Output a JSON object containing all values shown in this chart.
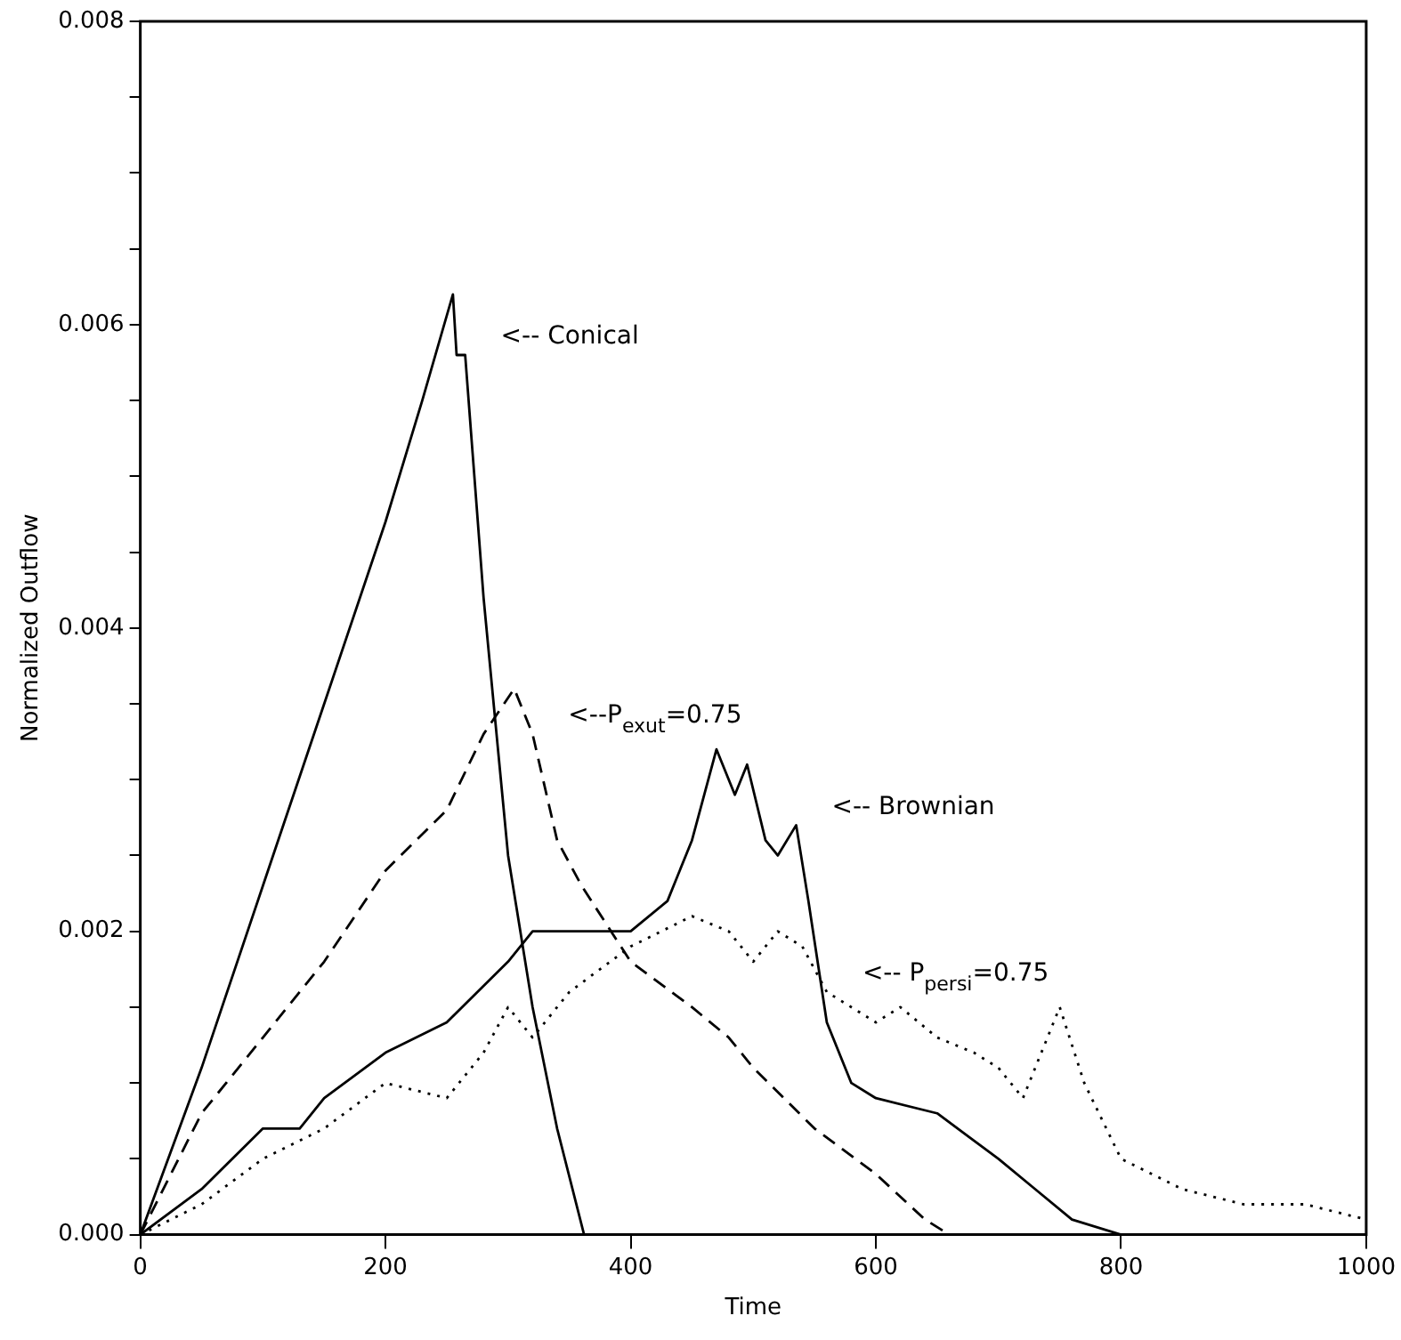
{
  "chart_data": {
    "type": "line",
    "xlabel": "Time",
    "ylabel": "Normalized Outflow",
    "xlim": [
      0,
      1000
    ],
    "xticks": [
      0,
      200,
      400,
      600,
      800,
      1000
    ],
    "ylim": [
      0,
      0.008
    ],
    "yticks": [
      {
        "value": 0,
        "label": "0.000"
      },
      {
        "value": 0.0005,
        "label": null
      },
      {
        "value": 0.001,
        "label": null
      },
      {
        "value": 0.0015,
        "label": null
      },
      {
        "value": 0.002,
        "label": "0.002"
      },
      {
        "value": 0.0025,
        "label": null
      },
      {
        "value": 0.003,
        "label": null
      },
      {
        "value": 0.0035,
        "label": null
      },
      {
        "value": 0.004,
        "label": "0.004"
      },
      {
        "value": 0.0045,
        "label": null
      },
      {
        "value": 0.005,
        "label": null
      },
      {
        "value": 0.0055,
        "label": null
      },
      {
        "value": 0.006,
        "label": "0.006"
      },
      {
        "value": 0.0065,
        "label": null
      },
      {
        "value": 0.007,
        "label": null
      },
      {
        "value": 0.0075,
        "label": null
      },
      {
        "value": 0.008,
        "label": "0.008"
      }
    ],
    "grid": false,
    "legend": false,
    "marker": "none",
    "series": [
      {
        "name": "<-- Conical",
        "color": "#000000",
        "line_style": "solid",
        "x": [
          0,
          50,
          100,
          150,
          200,
          230,
          255,
          258,
          265,
          280,
          300,
          320,
          340,
          362
        ],
        "values": [
          0,
          0.0011,
          0.0023,
          0.0035,
          0.0047,
          0.0055,
          0.0062,
          0.0058,
          0.0058,
          0.0042,
          0.0025,
          0.0015,
          0.0007,
          0
        ]
      },
      {
        "name": "<--P$_{exut}$=0.75",
        "color": "#000000",
        "line_style": "dashed",
        "x": [
          0,
          50,
          100,
          150,
          200,
          250,
          280,
          305,
          320,
          340,
          360,
          400,
          450,
          480,
          500,
          550,
          600,
          640,
          660
        ],
        "values": [
          0,
          0.0008,
          0.0013,
          0.0018,
          0.0024,
          0.0028,
          0.0033,
          0.0036,
          0.0033,
          0.0026,
          0.0023,
          0.0018,
          0.0015,
          0.0013,
          0.0011,
          0.0007,
          0.0004,
          0.0001,
          0
        ]
      },
      {
        "name": "<-- Brownian",
        "color": "#000000",
        "line_style": "solid",
        "x": [
          0,
          50,
          100,
          130,
          150,
          200,
          250,
          300,
          320,
          350,
          400,
          430,
          450,
          470,
          485,
          495,
          510,
          520,
          535,
          545,
          560,
          580,
          600,
          650,
          700,
          730,
          760,
          800
        ],
        "values": [
          0,
          0.0003,
          0.0007,
          0.0007,
          0.0009,
          0.0012,
          0.0014,
          0.0018,
          0.002,
          0.002,
          0.002,
          0.0022,
          0.0026,
          0.0032,
          0.0029,
          0.0031,
          0.0026,
          0.0025,
          0.0027,
          0.0022,
          0.0014,
          0.001,
          0.0009,
          0.0008,
          0.0005,
          0.0003,
          0.0001,
          0
        ]
      },
      {
        "name": "<-- P$_{persi}$=0.75",
        "color": "#000000",
        "line_style": "dotted",
        "x": [
          0,
          50,
          100,
          150,
          200,
          250,
          280,
          300,
          320,
          350,
          400,
          450,
          480,
          500,
          520,
          540,
          560,
          600,
          620,
          650,
          680,
          700,
          720,
          750,
          770,
          800,
          850,
          900,
          950,
          1000
        ],
        "values": [
          0,
          0.0002,
          0.0005,
          0.0007,
          0.001,
          0.0009,
          0.0012,
          0.0015,
          0.0013,
          0.0016,
          0.0019,
          0.0021,
          0.002,
          0.0018,
          0.002,
          0.0019,
          0.0016,
          0.0014,
          0.0015,
          0.0013,
          0.0012,
          0.0011,
          0.0009,
          0.0015,
          0.001,
          0.0005,
          0.0003,
          0.0002,
          0.0002,
          0.0001
        ]
      }
    ]
  }
}
